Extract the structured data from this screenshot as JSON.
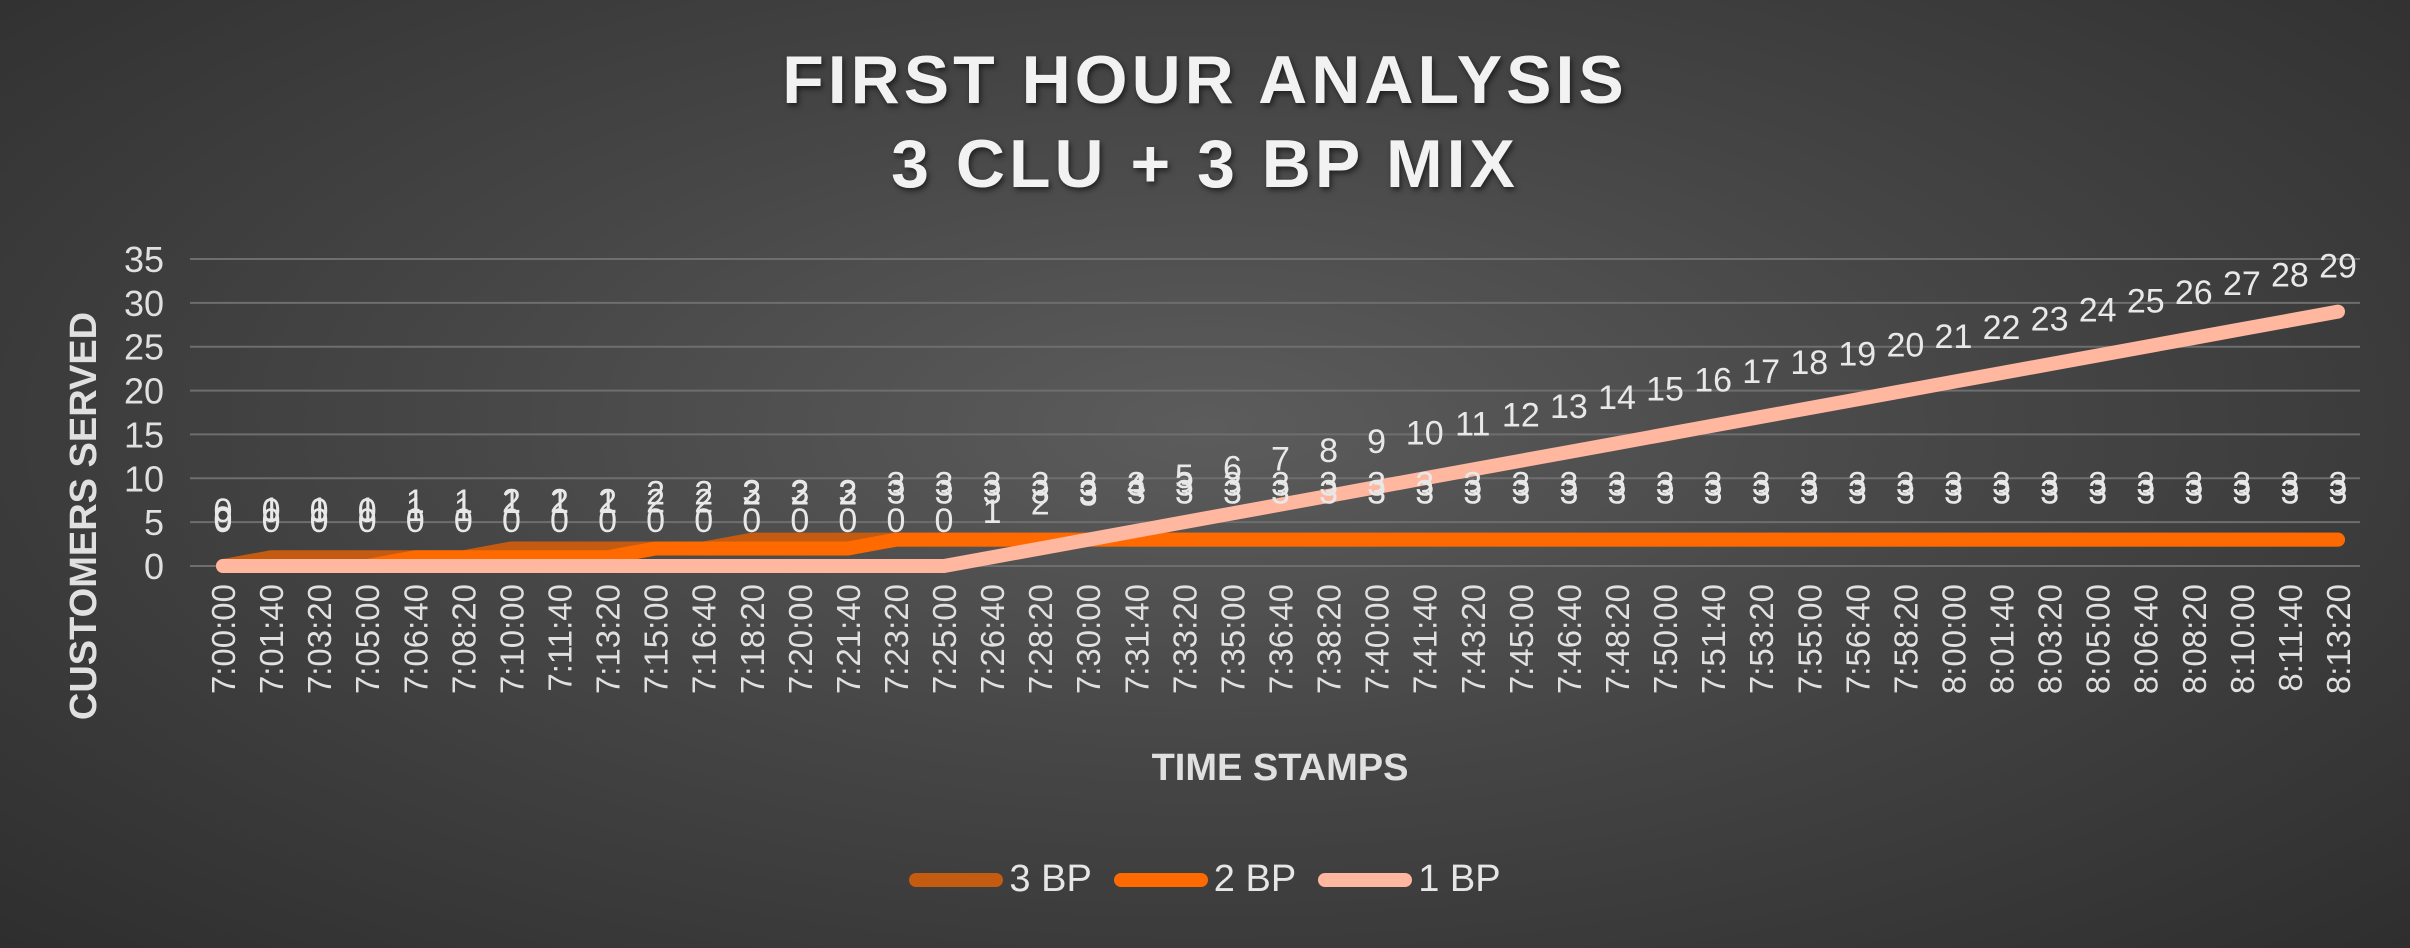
{
  "chart_data": {
    "type": "line",
    "title_line1": "FIRST HOUR ANALYSIS",
    "title_line2": "3 CLU + 3 BP MIX",
    "xlabel": "TIME STAMPS",
    "ylabel": "CUSTOMERS SERVED",
    "ylim": [
      0,
      35
    ],
    "yticks": [
      "0",
      "5",
      "10",
      "15",
      "20",
      "25",
      "30",
      "35"
    ],
    "grid": true,
    "legend_position": "bottom",
    "categories": [
      "7:00:00",
      "7:01:40",
      "7:03:20",
      "7:05:00",
      "7:06:40",
      "7:08:20",
      "7:10:00",
      "7:11:40",
      "7:13:20",
      "7:15:00",
      "7:16:40",
      "7:18:20",
      "7:20:00",
      "7:21:40",
      "7:23:20",
      "7:25:00",
      "7:26:40",
      "7:28:20",
      "7:30:00",
      "7:31:40",
      "7:33:20",
      "7:35:00",
      "7:36:40",
      "7:38:20",
      "7:40:00",
      "7:41:40",
      "7:43:20",
      "7:45:00",
      "7:46:40",
      "7:48:20",
      "7:50:00",
      "7:51:40",
      "7:53:20",
      "7:55:00",
      "7:56:40",
      "7:58:20",
      "8:00:00",
      "8:01:40",
      "8:03:20",
      "8:05:00",
      "8:06:40",
      "8:08:20",
      "8:10:00",
      "8:11:40",
      "8:13:20"
    ],
    "series": [
      {
        "name": "3 BP",
        "color": "#c55a11",
        "values": [
          0,
          1,
          1,
          1,
          1,
          1,
          2,
          2,
          2,
          2,
          2,
          3,
          3,
          3,
          3,
          3,
          3,
          3,
          3,
          3,
          3,
          3,
          3,
          3,
          3,
          3,
          3,
          3,
          3,
          3,
          3,
          3,
          3,
          3,
          3,
          3,
          3,
          3,
          3,
          3,
          3,
          3,
          3,
          3,
          3
        ]
      },
      {
        "name": "2 BP",
        "color": "#ff6a00",
        "values": [
          0,
          0,
          0,
          0,
          1,
          1,
          1,
          1,
          1,
          2,
          2,
          2,
          2,
          2,
          3,
          3,
          3,
          3,
          3,
          3,
          3,
          3,
          3,
          3,
          3,
          3,
          3,
          3,
          3,
          3,
          3,
          3,
          3,
          3,
          3,
          3,
          3,
          3,
          3,
          3,
          3,
          3,
          3,
          3,
          3
        ]
      },
      {
        "name": "1 BP",
        "color": "#ffb7a0",
        "values": [
          0,
          0,
          0,
          0,
          0,
          0,
          0,
          0,
          0,
          0,
          0,
          0,
          0,
          0,
          0,
          0,
          1,
          2,
          3,
          4,
          5,
          6,
          7,
          8,
          9,
          10,
          11,
          12,
          13,
          14,
          15,
          16,
          17,
          18,
          19,
          20,
          21,
          22,
          23,
          24,
          25,
          26,
          27,
          28,
          29
        ]
      }
    ]
  }
}
